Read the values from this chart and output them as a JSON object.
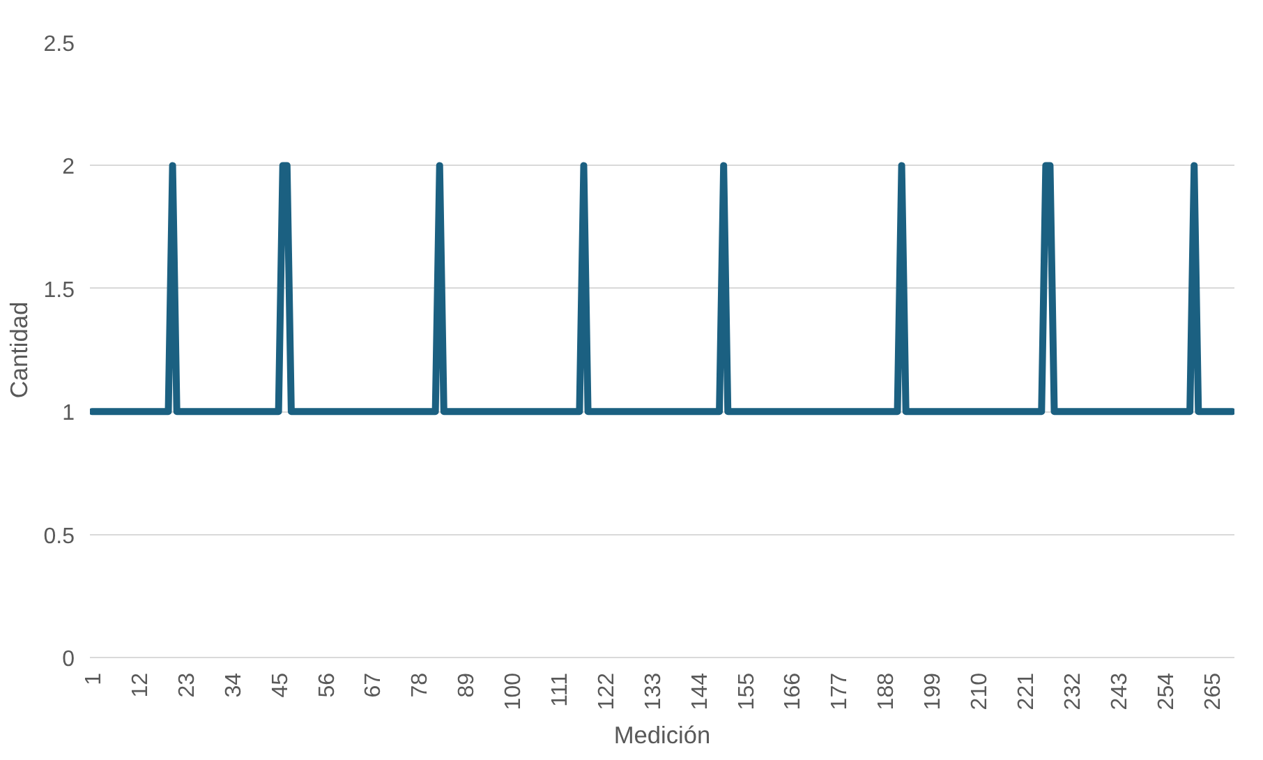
{
  "chart_data": {
    "type": "line",
    "xlabel": "Medición",
    "ylabel": "Cantidad",
    "x": [
      1,
      2,
      3,
      4,
      5,
      6,
      7,
      8,
      9,
      10,
      11,
      12,
      13,
      14,
      15,
      16,
      17,
      18,
      19,
      20,
      21,
      22,
      23,
      24,
      25,
      26,
      27,
      28,
      29,
      30,
      31,
      32,
      33,
      34,
      35,
      36,
      37,
      38,
      39,
      40,
      41,
      42,
      43,
      44,
      45,
      46,
      47,
      48,
      49,
      50,
      51,
      52,
      53,
      54,
      55,
      56,
      57,
      58,
      59,
      60,
      61,
      62,
      63,
      64,
      65,
      66,
      67,
      68,
      69,
      70,
      71,
      72,
      73,
      74,
      75,
      76,
      77,
      78,
      79,
      80,
      81,
      82,
      83,
      84,
      85,
      86,
      87,
      88,
      89,
      90,
      91,
      92,
      93,
      94,
      95,
      96,
      97,
      98,
      99,
      100,
      101,
      102,
      103,
      104,
      105,
      106,
      107,
      108,
      109,
      110,
      111,
      112,
      113,
      114,
      115,
      116,
      117,
      118,
      119,
      120,
      121,
      122,
      123,
      124,
      125,
      126,
      127,
      128,
      129,
      130,
      131,
      132,
      133,
      134,
      135,
      136,
      137,
      138,
      139,
      140,
      141,
      142,
      143,
      144,
      145,
      146,
      147,
      148,
      149,
      150,
      151,
      152,
      153,
      154,
      155,
      156,
      157,
      158,
      159,
      160,
      161,
      162,
      163,
      164,
      165,
      166,
      167,
      168,
      169,
      170,
      171,
      172,
      173,
      174,
      175,
      176,
      177,
      178,
      179,
      180,
      181,
      182,
      183,
      184,
      185,
      186,
      187,
      188,
      189,
      190,
      191,
      192,
      193,
      194,
      195,
      196,
      197,
      198,
      199,
      200,
      201,
      202,
      203,
      204,
      205,
      206,
      207,
      208,
      209,
      210,
      211,
      212,
      213,
      214,
      215,
      216,
      217,
      218,
      219,
      220,
      221,
      222,
      223,
      224,
      225,
      226,
      227,
      228,
      229,
      230,
      231,
      232,
      233,
      234,
      235,
      236,
      237,
      238,
      239,
      240,
      241,
      242,
      243,
      244,
      245,
      246,
      247,
      248,
      249,
      250,
      251,
      252,
      253,
      254,
      255,
      256,
      257,
      258,
      259,
      260,
      261,
      262,
      263,
      264,
      265,
      266,
      267,
      268,
      269,
      270
    ],
    "series": [
      {
        "color": "#1b6081",
        "values": [
          1,
          1,
          1,
          1,
          1,
          1,
          1,
          1,
          1,
          1,
          1,
          1,
          1,
          1,
          1,
          1,
          1,
          1,
          1,
          2,
          1,
          1,
          1,
          1,
          1,
          1,
          1,
          1,
          1,
          1,
          1,
          1,
          1,
          1,
          1,
          1,
          1,
          1,
          1,
          1,
          1,
          1,
          1,
          1,
          1,
          2,
          2,
          1,
          1,
          1,
          1,
          1,
          1,
          1,
          1,
          1,
          1,
          1,
          1,
          1,
          1,
          1,
          1,
          1,
          1,
          1,
          1,
          1,
          1,
          1,
          1,
          1,
          1,
          1,
          1,
          1,
          1,
          1,
          1,
          1,
          1,
          1,
          2,
          1,
          1,
          1,
          1,
          1,
          1,
          1,
          1,
          1,
          1,
          1,
          1,
          1,
          1,
          1,
          1,
          1,
          1,
          1,
          1,
          1,
          1,
          1,
          1,
          1,
          1,
          1,
          1,
          1,
          1,
          1,
          1,
          1,
          2,
          1,
          1,
          1,
          1,
          1,
          1,
          1,
          1,
          1,
          1,
          1,
          1,
          1,
          1,
          1,
          1,
          1,
          1,
          1,
          1,
          1,
          1,
          1,
          1,
          1,
          1,
          1,
          1,
          1,
          1,
          1,
          1,
          2,
          1,
          1,
          1,
          1,
          1,
          1,
          1,
          1,
          1,
          1,
          1,
          1,
          1,
          1,
          1,
          1,
          1,
          1,
          1,
          1,
          1,
          1,
          1,
          1,
          1,
          1,
          1,
          1,
          1,
          1,
          1,
          1,
          1,
          1,
          1,
          1,
          1,
          1,
          1,
          1,
          1,
          2,
          1,
          1,
          1,
          1,
          1,
          1,
          1,
          1,
          1,
          1,
          1,
          1,
          1,
          1,
          1,
          1,
          1,
          1,
          1,
          1,
          1,
          1,
          1,
          1,
          1,
          1,
          1,
          1,
          1,
          1,
          1,
          1,
          1,
          2,
          2,
          1,
          1,
          1,
          1,
          1,
          1,
          1,
          1,
          1,
          1,
          1,
          1,
          1,
          1,
          1,
          1,
          1,
          1,
          1,
          1,
          1,
          1,
          1,
          1,
          1,
          1,
          1,
          1,
          1,
          1,
          1,
          1,
          1,
          2,
          1,
          1,
          1,
          1,
          1,
          1,
          1,
          1,
          1
        ]
      }
    ],
    "xlim": [
      0.5,
      270.5
    ],
    "xticks": [
      1,
      12,
      23,
      34,
      45,
      56,
      67,
      78,
      89,
      100,
      111,
      122,
      133,
      144,
      155,
      166,
      177,
      188,
      199,
      210,
      221,
      232,
      243,
      254,
      265
    ],
    "ylim": [
      0,
      2.5
    ],
    "yticks": [
      0,
      0.5,
      1,
      1.5,
      2,
      2.5
    ],
    "grid": "y",
    "marker": "none",
    "line_style": "solid"
  }
}
